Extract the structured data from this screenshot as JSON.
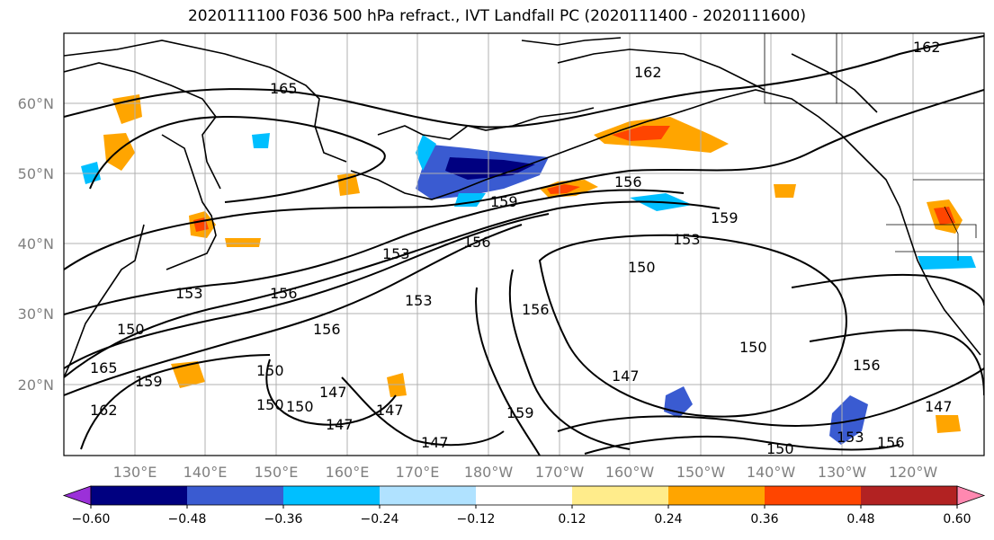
{
  "title": "2020111100 F036 500 hPa refract., IVT Landfall PC (2020111400 - 2020111600)",
  "map": {
    "lat_labels": [
      "60°N",
      "50°N",
      "40°N",
      "30°N",
      "20°N"
    ],
    "lon_labels": [
      "130°E",
      "140°E",
      "150°E",
      "160°E",
      "170°E",
      "180°W",
      "170°W",
      "160°W",
      "150°W",
      "140°W",
      "130°W",
      "120°W"
    ],
    "contour_labels": [
      "165",
      "162",
      "162",
      "156",
      "159",
      "159",
      "153",
      "156",
      "153",
      "150",
      "153",
      "156",
      "150",
      "159",
      "156",
      "153",
      "156",
      "150",
      "150",
      "147",
      "147",
      "147",
      "150",
      "147",
      "150",
      "156",
      "153",
      "159",
      "150",
      "156",
      "147",
      "147",
      "165",
      "162"
    ],
    "gridlines": true,
    "coastlines": true
  },
  "colorbar": {
    "ticks": [
      "−0.60",
      "−0.48",
      "−0.36",
      "−0.24",
      "−0.12",
      "0.12",
      "0.24",
      "0.36",
      "0.48",
      "0.60"
    ],
    "colors": [
      "#9b30d9",
      "#000080",
      "#3a5bd1",
      "#00bfff",
      "#b0e2ff",
      "#ffffff",
      "#ffec8b",
      "#ffa500",
      "#ff4500",
      "#b22222",
      "#ff88b0"
    ],
    "extend": "both"
  }
}
